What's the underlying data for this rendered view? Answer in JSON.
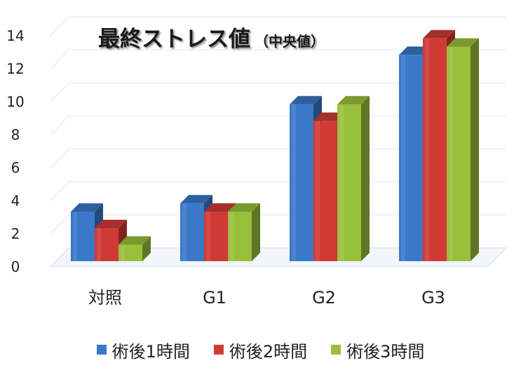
{
  "chart_data": {
    "type": "bar",
    "title": "最終ストレス値",
    "subtitle": "（中央値）",
    "categories": [
      "対照",
      "G1",
      "G2",
      "G3"
    ],
    "series": [
      {
        "name": "術後1時間",
        "values": [
          3,
          3.5,
          9.5,
          12.5
        ],
        "color": "#3a78c8"
      },
      {
        "name": "術後2時間",
        "values": [
          2,
          3,
          8.5,
          13.5
        ],
        "color": "#d03a36"
      },
      {
        "name": "術後3時間",
        "values": [
          1,
          3,
          9.5,
          13
        ],
        "color": "#98c03a"
      }
    ],
    "yticks": [
      "0",
      "2",
      "4",
      "6",
      "8",
      "10",
      "12",
      "14"
    ],
    "ylim": [
      0,
      14
    ],
    "xlabel": "",
    "ylabel": "",
    "grid": true,
    "legend_position": "bottom",
    "style": "3d-clustered-bar"
  }
}
